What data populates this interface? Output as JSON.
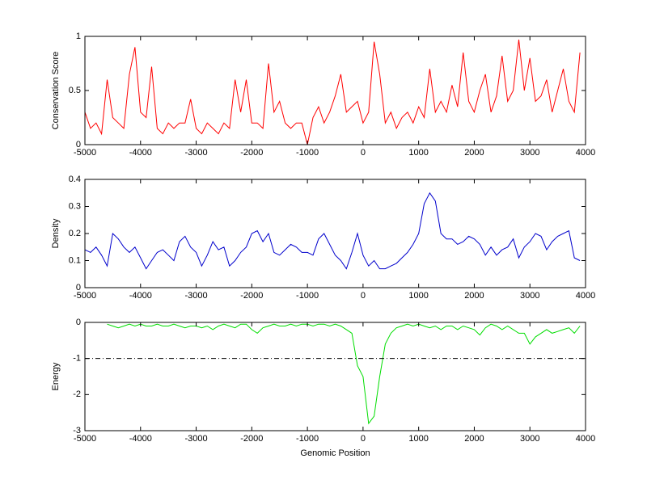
{
  "chart_data": [
    {
      "type": "line",
      "ylabel": "Conservation Score",
      "color": "#ff0000",
      "xlim": [
        -5000,
        4000
      ],
      "xticks": [
        -5000,
        -4000,
        -3000,
        -2000,
        -1000,
        0,
        1000,
        2000,
        3000,
        4000
      ],
      "ylim": [
        0,
        1
      ],
      "yticks": [
        0,
        0.5,
        1
      ],
      "x": [
        -5000,
        -4900,
        -4800,
        -4700,
        -4600,
        -4500,
        -4400,
        -4300,
        -4200,
        -4100,
        -4000,
        -3900,
        -3800,
        -3700,
        -3600,
        -3500,
        -3400,
        -3300,
        -3200,
        -3100,
        -3000,
        -2900,
        -2800,
        -2700,
        -2600,
        -2500,
        -2400,
        -2300,
        -2200,
        -2100,
        -2000,
        -1900,
        -1800,
        -1700,
        -1600,
        -1500,
        -1400,
        -1300,
        -1200,
        -1100,
        -1000,
        -900,
        -800,
        -700,
        -600,
        -500,
        -400,
        -300,
        -200,
        -100,
        0,
        100,
        200,
        300,
        400,
        500,
        600,
        700,
        800,
        900,
        1000,
        1100,
        1200,
        1300,
        1400,
        1500,
        1600,
        1700,
        1800,
        1900,
        2000,
        2100,
        2200,
        2300,
        2400,
        2500,
        2600,
        2700,
        2800,
        2900,
        3000,
        3100,
        3200,
        3300,
        3400,
        3500,
        3600,
        3700,
        3800,
        3900
      ],
      "values": [
        0.3,
        0.15,
        0.2,
        0.1,
        0.6,
        0.25,
        0.2,
        0.15,
        0.65,
        0.9,
        0.3,
        0.25,
        0.72,
        0.15,
        0.1,
        0.2,
        0.15,
        0.2,
        0.2,
        0.42,
        0.15,
        0.1,
        0.2,
        0.15,
        0.1,
        0.2,
        0.15,
        0.6,
        0.3,
        0.6,
        0.2,
        0.2,
        0.15,
        0.75,
        0.3,
        0.4,
        0.2,
        0.15,
        0.2,
        0.2,
        0,
        0.25,
        0.35,
        0.2,
        0.3,
        0.45,
        0.65,
        0.3,
        0.35,
        0.4,
        0.2,
        0.3,
        0.95,
        0.65,
        0.2,
        0.3,
        0.15,
        0.25,
        0.3,
        0.2,
        0.35,
        0.25,
        0.7,
        0.3,
        0.4,
        0.3,
        0.55,
        0.35,
        0.85,
        0.4,
        0.3,
        0.5,
        0.65,
        0.3,
        0.45,
        0.82,
        0.4,
        0.5,
        0.97,
        0.5,
        0.8,
        0.4,
        0.45,
        0.6,
        0.3,
        0.5,
        0.7,
        0.4,
        0.3,
        0.85
      ]
    },
    {
      "type": "line",
      "ylabel": "Density",
      "color": "#0000cc",
      "xlim": [
        -5000,
        4000
      ],
      "xticks": [
        -5000,
        -4000,
        -3000,
        -2000,
        -1000,
        0,
        1000,
        2000,
        3000,
        4000
      ],
      "ylim": [
        0,
        0.4
      ],
      "yticks": [
        0,
        0.1,
        0.2,
        0.3,
        0.4
      ],
      "x": [
        -5000,
        -4900,
        -4800,
        -4700,
        -4600,
        -4500,
        -4400,
        -4300,
        -4200,
        -4100,
        -4000,
        -3900,
        -3800,
        -3700,
        -3600,
        -3500,
        -3400,
        -3300,
        -3200,
        -3100,
        -3000,
        -2900,
        -2800,
        -2700,
        -2600,
        -2500,
        -2400,
        -2300,
        -2200,
        -2100,
        -2000,
        -1900,
        -1800,
        -1700,
        -1600,
        -1500,
        -1400,
        -1300,
        -1200,
        -1100,
        -1000,
        -900,
        -800,
        -700,
        -600,
        -500,
        -400,
        -300,
        -200,
        -100,
        0,
        100,
        200,
        300,
        400,
        500,
        600,
        700,
        800,
        900,
        1000,
        1100,
        1200,
        1300,
        1400,
        1500,
        1600,
        1700,
        1800,
        1900,
        2000,
        2100,
        2200,
        2300,
        2400,
        2500,
        2600,
        2700,
        2800,
        2900,
        3000,
        3100,
        3200,
        3300,
        3400,
        3500,
        3600,
        3700,
        3800,
        3900
      ],
      "values": [
        0.14,
        0.13,
        0.15,
        0.12,
        0.08,
        0.2,
        0.18,
        0.15,
        0.13,
        0.15,
        0.11,
        0.07,
        0.1,
        0.13,
        0.14,
        0.12,
        0.1,
        0.17,
        0.19,
        0.15,
        0.13,
        0.08,
        0.12,
        0.17,
        0.14,
        0.15,
        0.08,
        0.1,
        0.13,
        0.15,
        0.2,
        0.21,
        0.17,
        0.2,
        0.13,
        0.12,
        0.14,
        0.16,
        0.15,
        0.13,
        0.13,
        0.12,
        0.18,
        0.2,
        0.16,
        0.12,
        0.1,
        0.07,
        0.13,
        0.2,
        0.12,
        0.08,
        0.1,
        0.07,
        0.07,
        0.08,
        0.09,
        0.11,
        0.13,
        0.16,
        0.2,
        0.31,
        0.35,
        0.32,
        0.2,
        0.18,
        0.18,
        0.16,
        0.17,
        0.19,
        0.18,
        0.16,
        0.12,
        0.15,
        0.12,
        0.14,
        0.15,
        0.18,
        0.11,
        0.15,
        0.17,
        0.2,
        0.19,
        0.14,
        0.17,
        0.19,
        0.2,
        0.21,
        0.11,
        0.1
      ]
    },
    {
      "type": "line",
      "ylabel": "Energy",
      "xlabel": "Genomic Position",
      "color": "#00dd00",
      "xlim": [
        -5000,
        4000
      ],
      "xticks": [
        -5000,
        -4000,
        -3000,
        -2000,
        -1000,
        0,
        1000,
        2000,
        3000,
        4000
      ],
      "ylim": [
        -3,
        0
      ],
      "yticks": [
        -3,
        -2,
        -1,
        0
      ],
      "hline": -1,
      "x": [
        -5000,
        -4900,
        -4800,
        -4700,
        -4600,
        -4500,
        -4400,
        -4300,
        -4200,
        -4100,
        -4000,
        -3900,
        -3800,
        -3700,
        -3600,
        -3500,
        -3400,
        -3300,
        -3200,
        -3100,
        -3000,
        -2900,
        -2800,
        -2700,
        -2600,
        -2500,
        -2400,
        -2300,
        -2200,
        -2100,
        -2000,
        -1900,
        -1800,
        -1700,
        -1600,
        -1500,
        -1400,
        -1300,
        -1200,
        -1100,
        -1000,
        -900,
        -800,
        -700,
        -600,
        -500,
        -400,
        -300,
        -200,
        -100,
        0,
        100,
        200,
        300,
        400,
        500,
        600,
        700,
        800,
        900,
        1000,
        1100,
        1200,
        1300,
        1400,
        1500,
        1600,
        1700,
        1800,
        1900,
        2000,
        2100,
        2200,
        2300,
        2400,
        2500,
        2600,
        2700,
        2800,
        2900,
        3000,
        3100,
        3200,
        3300,
        3400,
        3500,
        3600,
        3700,
        3800,
        3900
      ],
      "values": [
        null,
        null,
        null,
        null,
        -0.05,
        -0.1,
        -0.15,
        -0.1,
        -0.05,
        -0.1,
        -0.05,
        -0.1,
        -0.1,
        -0.05,
        -0.1,
        -0.1,
        -0.05,
        -0.1,
        -0.15,
        -0.1,
        -0.1,
        -0.15,
        -0.1,
        -0.2,
        -0.1,
        -0.05,
        -0.1,
        -0.15,
        -0.05,
        -0.05,
        -0.2,
        -0.3,
        -0.15,
        -0.1,
        -0.05,
        -0.1,
        -0.1,
        -0.05,
        -0.1,
        -0.05,
        -0.05,
        -0.1,
        -0.05,
        -0.05,
        -0.1,
        -0.05,
        -0.1,
        -0.2,
        -0.3,
        -1.2,
        -1.5,
        -2.8,
        -2.6,
        -1.5,
        -0.6,
        -0.3,
        -0.15,
        -0.1,
        -0.05,
        -0.1,
        -0.05,
        -0.1,
        -0.15,
        -0.1,
        -0.2,
        -0.1,
        -0.1,
        -0.2,
        -0.1,
        -0.15,
        -0.2,
        -0.35,
        -0.15,
        -0.05,
        -0.1,
        -0.2,
        -0.1,
        -0.2,
        -0.3,
        -0.3,
        -0.6,
        -0.4,
        -0.3,
        -0.2,
        -0.3,
        -0.25,
        -0.2,
        -0.15,
        -0.3,
        -0.1
      ]
    }
  ]
}
